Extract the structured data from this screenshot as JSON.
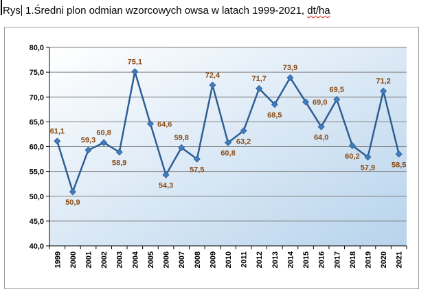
{
  "caption": {
    "prefix": "Rys",
    "text": " 1.Średni plon odmian wzorcowych owsa w latach 1999-2021, ",
    "unit": "dt/ha"
  },
  "colors": {
    "line": "#2e5f93",
    "marker": "#3f7cc2",
    "label": "#8a4a12",
    "plot_bg_start": "#ffffff",
    "plot_bg_end": "#b7d3ec",
    "grid": "#7f7f7f"
  },
  "chart_data": {
    "type": "line",
    "title": "Średni plon odmian wzorcowych owsa w latach 1999-2021, dt/ha",
    "xlabel": "",
    "ylabel": "",
    "ylim": [
      40,
      80
    ],
    "ystep": 5,
    "grid": true,
    "legend": "none",
    "categories": [
      "1999",
      "2000",
      "2001",
      "2002",
      "2003",
      "2004",
      "2005",
      "2006",
      "2007",
      "2008",
      "2009",
      "2010",
      "2011",
      "2012",
      "2013",
      "2014",
      "2015",
      "2016",
      "2017",
      "2018",
      "2019",
      "2020",
      "2021"
    ],
    "values": [
      61.1,
      50.9,
      59.3,
      60.8,
      58.9,
      75.1,
      64.6,
      54.3,
      59.8,
      57.5,
      72.4,
      60.8,
      63.2,
      71.7,
      68.5,
      73.9,
      69.0,
      64.0,
      69.5,
      60.2,
      57.9,
      71.2,
      58.5
    ],
    "value_labels": [
      "61,1",
      "50,9",
      "59,3",
      "60,8",
      "58,9",
      "75,1",
      "64,6",
      "54,3",
      "59,8",
      "57,5",
      "72,4",
      "60,8",
      "63,2",
      "71,7",
      "68,5",
      "73,9",
      "69,0",
      "64,0",
      "69,5",
      "60,2",
      "57,9",
      "71,2",
      "58,5"
    ],
    "label_positions": [
      "above",
      "below",
      "above",
      "above",
      "below",
      "above",
      "right",
      "below",
      "above",
      "below",
      "above",
      "below",
      "below",
      "above",
      "below",
      "above",
      "right",
      "below",
      "above",
      "below",
      "below",
      "above",
      "below"
    ],
    "ytick_labels": [
      "40,0",
      "45,0",
      "50,0",
      "55,0",
      "60,0",
      "65,0",
      "70,0",
      "75,0",
      "80,0"
    ]
  }
}
